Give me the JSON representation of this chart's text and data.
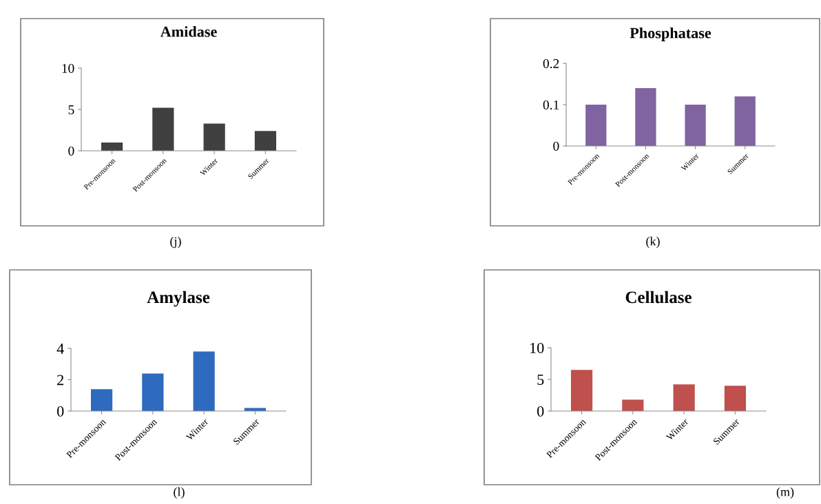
{
  "chart_data": [
    {
      "type": "bar",
      "title": "Amidase",
      "categories": [
        "Pre-monsoon",
        "Post-monsoon",
        "Winter",
        "Summer"
      ],
      "values": [
        1.0,
        5.2,
        3.3,
        2.4
      ],
      "color": "#404040",
      "ylim": [
        0,
        10
      ],
      "yticks": [
        0,
        5,
        10
      ],
      "grid": false,
      "annotations": [
        "(j)"
      ]
    },
    {
      "type": "bar",
      "title": "Phosphatase",
      "categories": [
        "Pre-monsoon",
        "Post-monsoon",
        "Winter",
        "Summer"
      ],
      "values": [
        0.1,
        0.14,
        0.1,
        0.12
      ],
      "color": "#8064a2",
      "ylim": [
        0,
        0.2
      ],
      "yticks": [
        0,
        0.1,
        0.2
      ],
      "grid": false,
      "annotations": [
        "(k)"
      ]
    },
    {
      "type": "bar",
      "title": "Amylase",
      "categories": [
        "Pre-monsoon",
        "Post-monsoon",
        "Winter",
        "Summer"
      ],
      "values": [
        1.4,
        2.4,
        3.8,
        0.2
      ],
      "color": "#2e6bbf",
      "ylim": [
        0,
        4
      ],
      "yticks": [
        0,
        2,
        4
      ],
      "grid": false,
      "annotations": [
        "(l)"
      ]
    },
    {
      "type": "bar",
      "title": "Cellulase",
      "categories": [
        "Pre-monsoon",
        "Post-monsoon",
        "Winter",
        "Summer"
      ],
      "values": [
        6.5,
        1.8,
        4.2,
        4.0
      ],
      "color": "#c0504d",
      "ylim": [
        0,
        10
      ],
      "yticks": [
        0,
        5,
        10
      ],
      "grid": false,
      "annotations": [
        "(m)"
      ]
    }
  ]
}
